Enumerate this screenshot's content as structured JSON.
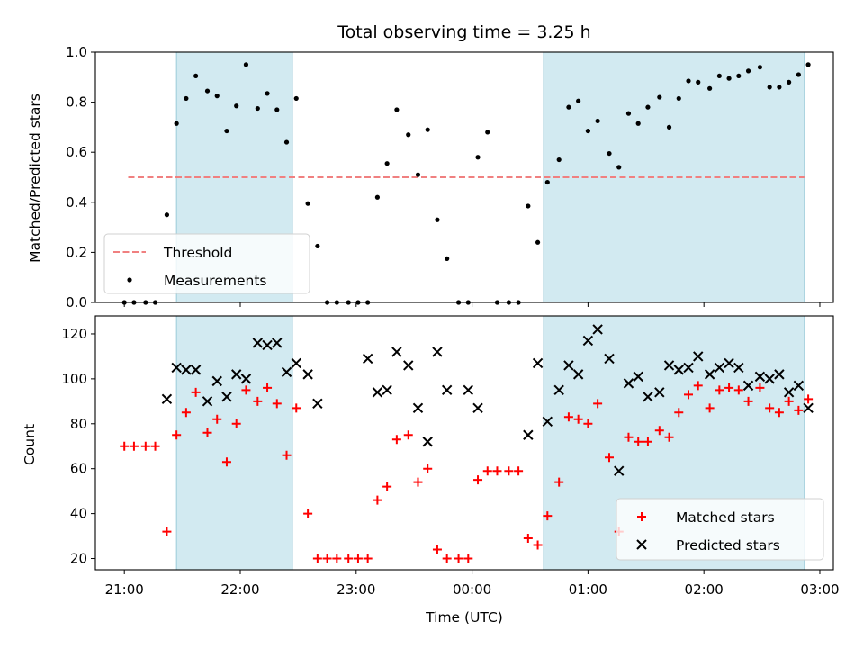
{
  "chart_data": {
    "title": "Total observing time = 3.25 h",
    "xlabel": "Time (UTC)",
    "x_tick_labels": [
      "21:00",
      "22:00",
      "23:00",
      "00:00",
      "01:00",
      "02:00",
      "03:00"
    ],
    "x_range": [
      "20:45",
      "03:07"
    ],
    "shaded_intervals": [
      [
        "21:27",
        "22:27"
      ],
      [
        "00:37",
        "02:52"
      ]
    ],
    "shade_color": "#add8e6",
    "panels": [
      {
        "type": "scatter",
        "ylabel": "Matched/Predicted stars",
        "ylim": [
          0,
          1.0
        ],
        "y_ticks": [
          "0.0",
          "0.2",
          "0.4",
          "0.6",
          "0.8",
          "1.0"
        ],
        "legend": "lower-left",
        "threshold": {
          "name": "Threshold",
          "value": 0.5,
          "x": [
            "21:02",
            "02:52"
          ],
          "color": "#f08080"
        },
        "series": [
          {
            "name": "Measurements",
            "marker": "dot",
            "color": "#000000",
            "x": [
              "21:00",
              "21:05",
              "21:11",
              "21:16",
              "21:22",
              "21:27",
              "21:32",
              "21:37",
              "21:43",
              "21:48",
              "21:53",
              "21:58",
              "22:03",
              "22:09",
              "22:14",
              "22:19",
              "22:24",
              "22:29",
              "22:35",
              "22:40",
              "22:45",
              "22:50",
              "22:56",
              "23:01",
              "23:06",
              "23:11",
              "23:16",
              "23:21",
              "23:27",
              "23:32",
              "23:37",
              "23:42",
              "23:47",
              "23:53",
              "23:58",
              "00:03",
              "00:08",
              "00:13",
              "00:19",
              "00:24",
              "00:29",
              "00:34",
              "00:39",
              "00:45",
              "00:50",
              "00:55",
              "01:00",
              "01:05",
              "01:11",
              "01:16",
              "01:21",
              "01:26",
              "01:31",
              "01:37",
              "01:42",
              "01:47",
              "01:52",
              "01:57",
              "02:03",
              "02:08",
              "02:13",
              "02:18",
              "02:23",
              "02:29",
              "02:34",
              "02:39",
              "02:44",
              "02:49",
              "02:54"
            ],
            "y": [
              0,
              0,
              0,
              0,
              0.35,
              0.715,
              0.815,
              0.905,
              0.845,
              0.825,
              0.685,
              0.785,
              0.95,
              0.775,
              0.835,
              0.77,
              0.64,
              0.815,
              0.395,
              0.225,
              0,
              0,
              0,
              0,
              0,
              0.42,
              0.555,
              0.77,
              0.67,
              0.51,
              0.69,
              0.33,
              0.175,
              0,
              0,
              0.58,
              0.68,
              0,
              0,
              0,
              0.385,
              0.24,
              0.48,
              0.57,
              0.78,
              0.805,
              0.685,
              0.725,
              0.595,
              0.54,
              0.755,
              0.715,
              0.78,
              0.82,
              0.7,
              0.815,
              0.885,
              0.88,
              0.855,
              0.905,
              0.895,
              0.905,
              0.925,
              0.94,
              0.86,
              0.86,
              0.88,
              0.91,
              0.95
            ]
          }
        ]
      },
      {
        "type": "scatter",
        "ylabel": "Count",
        "ylim": [
          15,
          128
        ],
        "y_ticks": [
          "20",
          "40",
          "60",
          "80",
          "100",
          "120"
        ],
        "legend": "lower-right",
        "series": [
          {
            "name": "Matched stars",
            "marker": "plus",
            "color": "#ff0000",
            "x": [
              "21:00",
              "21:05",
              "21:11",
              "21:16",
              "21:22",
              "21:27",
              "21:32",
              "21:37",
              "21:43",
              "21:48",
              "21:53",
              "21:58",
              "22:03",
              "22:09",
              "22:14",
              "22:19",
              "22:24",
              "22:29",
              "22:35",
              "22:40",
              "22:45",
              "22:50",
              "22:56",
              "23:01",
              "23:06",
              "23:11",
              "23:16",
              "23:21",
              "23:27",
              "23:32",
              "23:37",
              "23:42",
              "23:47",
              "23:53",
              "23:58",
              "00:03",
              "00:08",
              "00:13",
              "00:19",
              "00:24",
              "00:29",
              "00:34",
              "00:39",
              "00:45",
              "00:50",
              "00:55",
              "01:00",
              "01:05",
              "01:11",
              "01:16",
              "01:21",
              "01:26",
              "01:31",
              "01:37",
              "01:42",
              "01:47",
              "01:52",
              "01:57",
              "02:03",
              "02:08",
              "02:13",
              "02:18",
              "02:23",
              "02:29",
              "02:34",
              "02:39",
              "02:44",
              "02:49",
              "02:54"
            ],
            "y": [
              70,
              70,
              70,
              70,
              32,
              75,
              85,
              94,
              76,
              82,
              63,
              80,
              95,
              90,
              96,
              89,
              66,
              87,
              40,
              20,
              20,
              20,
              20,
              20,
              20,
              46,
              52,
              73,
              75,
              54,
              60,
              24,
              20,
              20,
              20,
              55,
              59,
              59,
              59,
              59,
              29,
              26,
              39,
              54,
              83,
              82,
              80,
              89,
              65,
              32,
              74,
              72,
              72,
              77,
              74,
              85,
              93,
              97,
              87,
              95,
              96,
              95,
              90,
              96,
              87,
              85,
              90,
              86,
              91
            ]
          },
          {
            "name": "Predicted stars",
            "marker": "x",
            "color": "#000000",
            "x": [
              "21:22",
              "21:27",
              "21:32",
              "21:37",
              "21:43",
              "21:48",
              "21:53",
              "21:58",
              "22:03",
              "22:09",
              "22:14",
              "22:19",
              "22:24",
              "22:29",
              "22:35",
              "22:40",
              "23:06",
              "23:11",
              "23:16",
              "23:21",
              "23:27",
              "23:32",
              "23:37",
              "23:42",
              "23:47",
              "23:58",
              "00:03",
              "00:29",
              "00:34",
              "00:39",
              "00:45",
              "00:50",
              "00:55",
              "01:00",
              "01:05",
              "01:11",
              "01:16",
              "01:21",
              "01:26",
              "01:31",
              "01:37",
              "01:42",
              "01:47",
              "01:52",
              "01:57",
              "02:03",
              "02:08",
              "02:13",
              "02:18",
              "02:23",
              "02:29",
              "02:34",
              "02:39",
              "02:44",
              "02:49",
              "02:54"
            ],
            "y": [
              91,
              105,
              104,
              104,
              90,
              99,
              92,
              102,
              100,
              116,
              115,
              116,
              103,
              107,
              102,
              89,
              109,
              94,
              95,
              112,
              106,
              87,
              72,
              112,
              95,
              95,
              87,
              75,
              107,
              81,
              95,
              106,
              102,
              117,
              122,
              109,
              59,
              98,
              101,
              92,
              94,
              106,
              104,
              105,
              110,
              102,
              105,
              107,
              105,
              97,
              101,
              100,
              102,
              94,
              97,
              87
            ]
          }
        ]
      }
    ]
  }
}
